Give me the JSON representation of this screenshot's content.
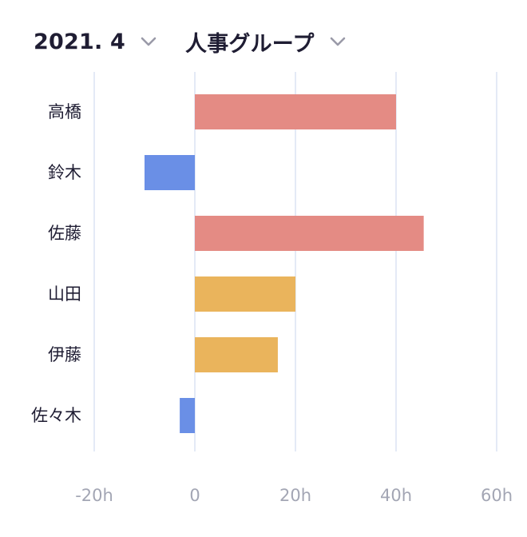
{
  "header": {
    "month": "2021. 4",
    "group": "人事グループ"
  },
  "icons": {
    "month_dropdown": "chevron-down-icon",
    "group_dropdown": "chevron-down-icon"
  },
  "colors": {
    "overtime": "#e48b84",
    "mid": "#eab45c",
    "under": "#6a8fe6",
    "grid": "#dbe3f3",
    "label": "#1f1d33",
    "tick": "#a3a6b4"
  },
  "chart_data": {
    "type": "bar",
    "orientation": "horizontal",
    "categories": [
      "高橋",
      "鈴木",
      "佐藤",
      "山田",
      "伊藤",
      "佐々木"
    ],
    "values": [
      40,
      -10,
      45.5,
      20,
      16.5,
      -3
    ],
    "bar_colors": [
      "#e48b84",
      "#6a8fe6",
      "#e48b84",
      "#eab45c",
      "#eab45c",
      "#6a8fe6"
    ],
    "xlim": [
      -20,
      60
    ],
    "xticks": [
      -20,
      0,
      20,
      40,
      60
    ],
    "xtick_labels": [
      "-20h",
      "0",
      "20h",
      "40h",
      "60h"
    ],
    "grid": true
  }
}
